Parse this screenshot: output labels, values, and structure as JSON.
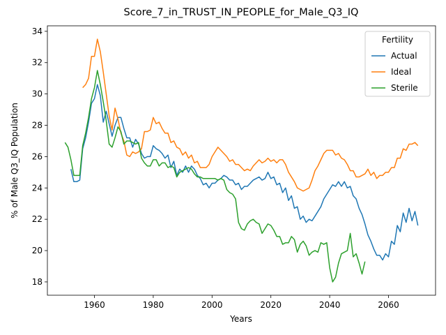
{
  "chart_data": {
    "type": "line",
    "title": "Score_7_in_TRUST_IN_PEOPLE_for_Male_Q3_IQ",
    "xlabel": "Years",
    "ylabel": "% of Male Q3_IQ Population",
    "legend_title": "Fertility",
    "legend": "upper right",
    "x": [
      1950,
      1951,
      1952,
      1953,
      1954,
      1955,
      1956,
      1957,
      1958,
      1959,
      1960,
      1961,
      1962,
      1963,
      1964,
      1965,
      1966,
      1967,
      1968,
      1969,
      1970,
      1971,
      1972,
      1973,
      1974,
      1975,
      1976,
      1977,
      1978,
      1979,
      1980,
      1981,
      1982,
      1983,
      1984,
      1985,
      1986,
      1987,
      1988,
      1989,
      1990,
      1991,
      1992,
      1993,
      1994,
      1995,
      1996,
      1997,
      1998,
      1999,
      2000,
      2001,
      2002,
      2003,
      2004,
      2005,
      2006,
      2007,
      2008,
      2009,
      2010,
      2011,
      2012,
      2013,
      2014,
      2015,
      2016,
      2017,
      2018,
      2019,
      2020,
      2021,
      2022,
      2023,
      2024,
      2025,
      2026,
      2027,
      2028,
      2029,
      2030,
      2031,
      2032,
      2033,
      2034,
      2035,
      2036,
      2037,
      2038,
      2039,
      2040,
      2041,
      2042,
      2043,
      2044,
      2045,
      2046,
      2047,
      2048,
      2049,
      2050,
      2051,
      2052,
      2053,
      2054,
      2055,
      2056,
      2057,
      2058,
      2059,
      2060,
      2061,
      2062,
      2063,
      2064,
      2065,
      2066,
      2067,
      2068,
      2069,
      2070
    ],
    "series": [
      {
        "name": "Actual",
        "color": "#1f77b4",
        "values": [
          null,
          null,
          25.2,
          24.4,
          24.4,
          24.5,
          26.5,
          27.2,
          28.2,
          29.4,
          29.7,
          30.6,
          29.9,
          28.2,
          28.9,
          28.1,
          27.3,
          28.0,
          28.5,
          28.5,
          27.8,
          27.2,
          27.2,
          26.6,
          27.1,
          26.8,
          26.2,
          25.9,
          26.0,
          26.0,
          26.7,
          26.5,
          26.4,
          26.2,
          25.9,
          26.1,
          25.3,
          25.7,
          24.8,
          25.2,
          25.0,
          25.4,
          25.0,
          25.4,
          25.2,
          24.8,
          24.6,
          24.2,
          24.3,
          24.0,
          24.3,
          24.3,
          24.5,
          24.6,
          24.8,
          24.7,
          24.5,
          24.5,
          24.2,
          24.3,
          23.9,
          24.1,
          24.1,
          24.3,
          24.5,
          24.6,
          24.7,
          24.5,
          24.6,
          25.0,
          24.6,
          24.7,
          24.2,
          24.3,
          23.7,
          24.0,
          23.2,
          23.5,
          22.7,
          22.8,
          22.0,
          22.2,
          21.8,
          22.0,
          21.9,
          22.2,
          22.5,
          22.8,
          23.3,
          23.6,
          23.9,
          24.2,
          24.1,
          24.4,
          24.1,
          24.4,
          24.0,
          24.1,
          23.5,
          23.3,
          22.7,
          22.3,
          21.7,
          21.0,
          20.6,
          20.1,
          19.7,
          19.7,
          19.4,
          19.8,
          19.6,
          20.6,
          20.4,
          21.6,
          21.2,
          22.4,
          21.8,
          22.7,
          21.9,
          22.5,
          21.6
        ]
      },
      {
        "name": "Ideal",
        "color": "#ff7f0e",
        "values": [
          null,
          null,
          null,
          null,
          null,
          null,
          30.4,
          30.6,
          31.0,
          32.4,
          32.4,
          33.5,
          32.7,
          31.4,
          30.0,
          28.6,
          27.7,
          29.1,
          28.4,
          27.5,
          27.0,
          26.1,
          26.0,
          26.3,
          26.2,
          26.3,
          26.5,
          27.6,
          27.6,
          27.7,
          28.5,
          28.1,
          28.2,
          27.8,
          27.5,
          27.5,
          26.9,
          27.0,
          26.6,
          26.5,
          26.1,
          26.3,
          25.9,
          26.1,
          25.6,
          25.7,
          25.3,
          25.3,
          25.3,
          25.5,
          26.0,
          26.3,
          26.6,
          26.4,
          26.2,
          26.0,
          25.7,
          25.8,
          25.5,
          25.5,
          25.3,
          25.1,
          25.2,
          25.1,
          25.4,
          25.6,
          25.8,
          25.6,
          25.7,
          25.9,
          25.7,
          25.8,
          25.6,
          25.8,
          25.8,
          25.5,
          25.0,
          24.7,
          24.4,
          24.0,
          23.9,
          23.8,
          23.9,
          24.0,
          24.5,
          25.1,
          25.4,
          25.8,
          26.2,
          26.4,
          26.4,
          26.4,
          26.1,
          26.2,
          25.9,
          25.8,
          25.5,
          25.1,
          25.1,
          24.7,
          24.7,
          24.8,
          24.9,
          25.2,
          24.8,
          25.0,
          24.6,
          24.8,
          24.8,
          25.0,
          25.0,
          25.3,
          25.3,
          25.9,
          25.9,
          26.5,
          26.4,
          26.8,
          26.8,
          26.9,
          26.7
        ]
      },
      {
        "name": "Sterile",
        "color": "#2ca02c",
        "values": [
          26.9,
          26.6,
          25.8,
          24.8,
          24.8,
          24.8,
          26.7,
          27.5,
          28.5,
          29.7,
          30.4,
          31.5,
          30.6,
          29.5,
          28.3,
          26.8,
          26.6,
          27.2,
          27.9,
          27.6,
          26.8,
          27.0,
          27.0,
          26.9,
          26.8,
          26.9,
          25.9,
          25.6,
          25.4,
          25.4,
          25.8,
          25.8,
          25.4,
          25.6,
          25.6,
          25.3,
          25.4,
          25.3,
          24.7,
          25.0,
          25.1,
          25.2,
          25.3,
          25.2,
          24.9,
          24.7,
          24.7,
          24.6,
          24.6,
          24.6,
          24.6,
          24.6,
          24.5,
          24.6,
          24.5,
          23.9,
          23.7,
          23.6,
          23.3,
          21.8,
          21.4,
          21.3,
          21.7,
          21.9,
          22.0,
          21.8,
          21.7,
          21.1,
          21.4,
          21.7,
          21.6,
          21.3,
          20.9,
          20.9,
          20.4,
          20.5,
          20.5,
          20.9,
          20.7,
          19.9,
          20.4,
          20.6,
          20.3,
          19.7,
          19.9,
          20.0,
          19.9,
          20.5,
          20.4,
          20.5,
          18.9,
          18.0,
          18.3,
          19.2,
          19.8,
          19.9,
          20.0,
          21.1,
          19.6,
          19.8,
          19.2,
          18.5,
          19.3,
          null,
          null,
          null,
          null,
          null,
          null,
          null,
          null,
          null,
          null,
          null,
          null,
          null,
          null,
          null,
          null,
          null,
          null
        ]
      }
    ],
    "xlim": [
      1944,
      2076
    ],
    "ylim": [
      17.15,
      34.35
    ],
    "xticks": [
      1960,
      1980,
      2000,
      2020,
      2040,
      2060
    ],
    "yticks": [
      18,
      20,
      22,
      24,
      26,
      28,
      30,
      32,
      34
    ]
  }
}
